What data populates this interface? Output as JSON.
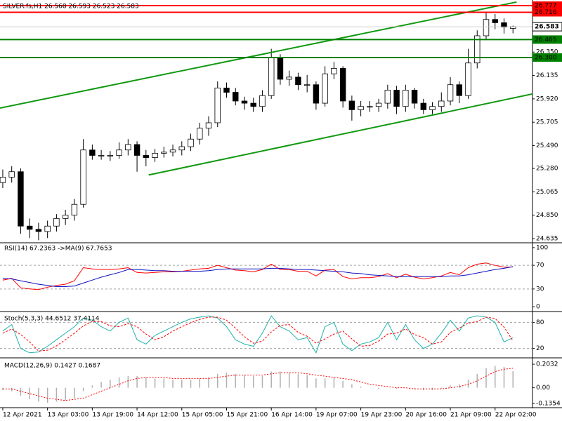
{
  "chart_data": [
    {
      "type": "candlestick",
      "title": "SILVER.fs,H1  26.568 26.593 26.523 26.583",
      "xlim": [
        -0.31,
        59.18
      ],
      "xticks": [
        {
          "value": 0,
          "label": "12 Apr 2021"
        },
        {
          "value": 5,
          "label": "13 Apr 03:00"
        },
        {
          "value": 10,
          "label": "13 Apr 19:00"
        },
        {
          "value": 15,
          "label": "14 Apr 12:00"
        },
        {
          "value": 20,
          "label": "15 Apr 05:00"
        },
        {
          "value": 25,
          "label": "15 Apr 21:00"
        },
        {
          "value": 30,
          "label": "16 Apr 14:00"
        },
        {
          "value": 35,
          "label": "19 Apr 07:00"
        },
        {
          "value": 40,
          "label": "19 Apr 23:00"
        },
        {
          "value": 45,
          "label": "20 Apr 16:00"
        },
        {
          "value": 50,
          "label": "21 Apr 09:00"
        },
        {
          "value": 55,
          "label": "22 Apr 02:00"
        }
      ],
      "ylim": [
        24.603,
        26.816
      ],
      "yticks": [
        {
          "value": 26.35,
          "label": "26.350"
        },
        26.135,
        {
          "value": 25.92,
          "label": "25.920"
        },
        25.705,
        {
          "value": 25.49,
          "label": "25.490"
        },
        {
          "value": 25.28,
          "label": "25.280"
        },
        25.065,
        {
          "value": 24.85,
          "label": "24.850"
        },
        24.635
      ],
      "open": [
        25.15,
        25.2,
        25.25,
        24.75,
        24.72,
        24.7,
        24.75,
        24.82,
        24.85,
        24.95,
        25.45,
        25.4,
        25.4,
        25.4,
        25.45,
        25.5,
        25.4,
        25.38,
        25.42,
        25.43,
        25.45,
        25.48,
        25.55,
        25.65,
        25.7,
        26.02,
        25.98,
        25.9,
        25.88,
        25.85,
        25.95,
        26.3,
        26.1,
        26.12,
        26.05,
        26.05,
        25.88,
        26.15,
        26.2,
        25.9,
        25.82,
        25.85,
        25.85,
        25.88,
        26.0,
        25.85,
        26.0,
        25.88,
        25.82,
        25.85,
        25.9,
        26.05,
        25.95,
        26.25,
        26.5,
        26.65,
        26.62,
        26.568
      ],
      "high": [
        25.27,
        25.3,
        25.28,
        24.82,
        24.78,
        24.8,
        24.86,
        24.9,
        25.0,
        25.55,
        25.5,
        25.45,
        25.44,
        25.52,
        25.55,
        25.53,
        25.45,
        25.46,
        25.48,
        25.5,
        25.53,
        25.6,
        25.7,
        25.76,
        26.08,
        26.07,
        26.02,
        25.94,
        25.93,
        26.0,
        26.38,
        26.33,
        26.18,
        26.16,
        26.14,
        26.08,
        26.22,
        26.26,
        26.22,
        25.95,
        25.9,
        25.9,
        25.92,
        26.05,
        26.04,
        26.05,
        26.02,
        25.92,
        25.89,
        25.98,
        26.12,
        26.08,
        26.38,
        26.55,
        26.71,
        26.7,
        26.66,
        26.593
      ],
      "low": [
        25.1,
        25.15,
        24.68,
        24.64,
        24.62,
        24.64,
        24.7,
        24.76,
        24.8,
        24.92,
        25.36,
        25.36,
        25.35,
        25.37,
        25.4,
        25.25,
        25.3,
        25.34,
        25.38,
        25.39,
        25.4,
        25.44,
        25.5,
        25.58,
        25.66,
        25.93,
        25.86,
        25.82,
        25.8,
        25.8,
        25.92,
        26.05,
        26.04,
        26.0,
        25.98,
        25.82,
        25.85,
        26.1,
        25.84,
        25.72,
        25.76,
        25.8,
        25.8,
        25.83,
        25.78,
        25.8,
        25.83,
        25.78,
        25.78,
        25.8,
        25.86,
        25.88,
        25.92,
        26.2,
        26.46,
        26.56,
        26.52,
        26.523
      ],
      "close": [
        25.2,
        25.25,
        24.75,
        24.72,
        24.7,
        24.75,
        24.82,
        24.85,
        24.95,
        25.45,
        25.4,
        25.4,
        25.4,
        25.45,
        25.5,
        25.4,
        25.38,
        25.42,
        25.43,
        25.45,
        25.48,
        25.55,
        25.65,
        25.7,
        26.02,
        25.98,
        25.9,
        25.88,
        25.85,
        25.95,
        26.3,
        26.1,
        26.12,
        26.05,
        26.05,
        25.88,
        26.15,
        26.2,
        25.9,
        25.82,
        25.85,
        25.85,
        25.88,
        26.0,
        25.85,
        26.0,
        25.88,
        25.82,
        25.85,
        25.9,
        26.05,
        25.95,
        26.25,
        26.5,
        26.65,
        26.62,
        26.58,
        26.583
      ],
      "up_color": "#ffffff",
      "down_color": "#000000",
      "edge_color": "#000000",
      "last": 26.583,
      "hlines": [
        {
          "value": 26.777,
          "color": "#ff0000"
        },
        {
          "value": 26.716,
          "color": "#ff0000"
        },
        {
          "value": 26.465,
          "color": "#008000"
        },
        {
          "value": 26.3,
          "label": "26.300",
          "color": "#008000"
        }
      ],
      "trendlines": [
        {
          "x": [
            -0.31,
            57.4
          ],
          "y": [
            25.835,
            26.81
          ],
          "color": "#119911"
        },
        {
          "x": [
            16.3,
            59.18
          ],
          "y": [
            25.22,
            25.965
          ],
          "color": "#119911"
        }
      ]
    },
    {
      "type": "line",
      "title": "RSI(14) 67.2363",
      "title2": "->MA(9) 67.7653",
      "ylim": [
        -7,
        107
      ],
      "yticks": [
        100,
        70,
        30,
        0
      ],
      "levels": [
        70,
        30
      ],
      "series": [
        {
          "color": "#ff0000",
          "values": [
            45,
            48,
            32,
            30,
            29,
            33,
            36,
            38,
            44,
            66,
            64,
            63,
            63,
            64,
            66,
            58,
            57,
            58,
            59,
            59,
            60,
            62,
            64,
            65,
            70,
            66,
            62,
            61,
            59,
            63,
            72,
            63,
            63,
            60,
            60,
            52,
            62,
            63,
            51,
            47,
            49,
            49,
            51,
            56,
            49,
            55,
            50,
            47,
            49,
            52,
            58,
            54,
            66,
            72,
            74,
            70,
            67,
            67.2363
          ]
        },
        {
          "color": "#1010c0",
          "values": [
            48,
            47,
            44,
            41,
            38,
            36,
            34,
            34,
            35,
            40,
            45,
            50,
            54,
            58,
            63,
            63,
            62,
            61,
            61,
            60,
            60,
            60,
            60,
            61,
            63,
            64,
            64,
            64,
            64,
            64,
            65,
            65,
            64,
            63,
            63,
            62,
            61,
            60,
            59,
            57,
            56,
            54,
            53,
            52,
            51,
            51,
            51,
            51,
            51,
            51,
            52,
            52,
            54,
            57,
            60,
            63,
            65,
            67.7653
          ]
        }
      ]
    },
    {
      "type": "line",
      "title": "Stoch(5,3,3) 44.6512 37.4114",
      "ylim": [
        0,
        100
      ],
      "yticks": [
        80,
        20
      ],
      "levels": [
        80,
        20
      ],
      "series": [
        {
          "color": "#20b2aa",
          "values": [
            60,
            75,
            20,
            10,
            12,
            25,
            40,
            55,
            70,
            90,
            85,
            70,
            60,
            80,
            90,
            40,
            30,
            50,
            60,
            70,
            80,
            88,
            92,
            95,
            90,
            70,
            40,
            30,
            25,
            55,
            95,
            70,
            60,
            40,
            45,
            10,
            70,
            80,
            30,
            15,
            30,
            35,
            45,
            80,
            40,
            75,
            40,
            20,
            30,
            55,
            85,
            60,
            90,
            95,
            92,
            80,
            35,
            44.6512
          ]
        },
        {
          "color": "#ff0000",
          "dashed": true,
          "values": [
            55,
            65,
            52,
            35,
            14,
            16,
            26,
            40,
            55,
            72,
            82,
            82,
            72,
            70,
            77,
            70,
            53,
            40,
            47,
            60,
            70,
            79,
            87,
            92,
            92,
            85,
            67,
            47,
            32,
            37,
            58,
            73,
            75,
            57,
            48,
            32,
            42,
            53,
            60,
            42,
            25,
            27,
            37,
            53,
            55,
            65,
            52,
            45,
            30,
            35,
            57,
            67,
            78,
            82,
            92,
            89,
            69,
            37.4114
          ]
        }
      ]
    },
    {
      "type": "bar",
      "title": "MACD(12,26,9) 0.1427 0.1687",
      "ylim": [
        -0.166,
        0.24
      ],
      "yticks": [
        0.2032,
        {
          "value": 0,
          "label": "0.00"
        },
        -0.1354
      ],
      "series": [
        {
          "kind": "bar",
          "color": "#b0b0b0",
          "values": [
            -0.02,
            -0.03,
            -0.07,
            -0.1,
            -0.12,
            -0.13,
            -0.12,
            -0.11,
            -0.09,
            -0.03,
            0.02,
            0.05,
            0.07,
            0.09,
            0.1,
            0.1,
            0.09,
            0.08,
            0.08,
            0.07,
            0.07,
            0.07,
            0.08,
            0.09,
            0.12,
            0.13,
            0.12,
            0.11,
            0.1,
            0.1,
            0.14,
            0.14,
            0.13,
            0.12,
            0.11,
            0.08,
            0.08,
            0.09,
            0.06,
            0.03,
            0.01,
            0.0,
            -0.01,
            0.0,
            -0.01,
            0.0,
            -0.01,
            -0.02,
            -0.02,
            -0.01,
            0.02,
            0.03,
            0.07,
            0.12,
            0.17,
            0.19,
            0.18,
            0.1427
          ]
        },
        {
          "kind": "line",
          "color": "#ff0000",
          "dashed": true,
          "values": [
            -0.01,
            -0.01,
            -0.03,
            -0.05,
            -0.07,
            -0.09,
            -0.1,
            -0.11,
            -0.1,
            -0.09,
            -0.06,
            -0.03,
            0.0,
            0.03,
            0.06,
            0.08,
            0.09,
            0.09,
            0.09,
            0.08,
            0.08,
            0.08,
            0.08,
            0.08,
            0.09,
            0.1,
            0.11,
            0.11,
            0.11,
            0.11,
            0.12,
            0.13,
            0.13,
            0.13,
            0.12,
            0.11,
            0.1,
            0.09,
            0.08,
            0.07,
            0.05,
            0.03,
            0.02,
            0.01,
            0.0,
            0.0,
            -0.01,
            -0.01,
            -0.01,
            -0.01,
            0.0,
            0.01,
            0.03,
            0.06,
            0.1,
            0.14,
            0.16,
            0.1687
          ]
        }
      ]
    }
  ]
}
